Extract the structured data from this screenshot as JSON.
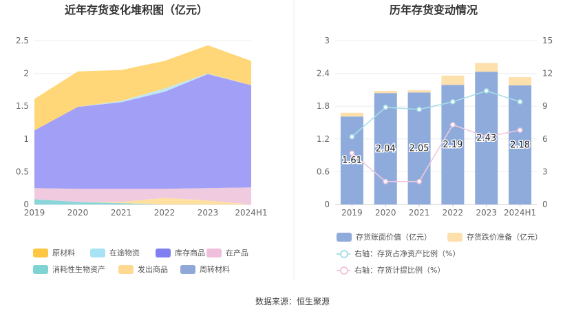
{
  "source_text": "数据来源：恒生聚源",
  "chart_data": [
    {
      "type": "area",
      "stacked": true,
      "title": "近年存货变化堆积图（亿元）",
      "categories": [
        "2019",
        "2020",
        "2021",
        "2022",
        "2023",
        "2024H1"
      ],
      "ylim": [
        0,
        2.5
      ],
      "yticks": [
        "0",
        "0.5",
        "1",
        "1.5",
        "2",
        "2.5"
      ],
      "grid": true,
      "legend_position": "bottom",
      "series": [
        {
          "name": "周转材料",
          "color": "#8fa8d8",
          "values": [
            0,
            0,
            0,
            0,
            0,
            0
          ]
        },
        {
          "name": "消耗性生物资产",
          "color": "#88d6d9",
          "values": [
            0.08,
            0.04,
            0.02,
            0,
            0,
            0
          ]
        },
        {
          "name": "发出商品",
          "color": "#ffe0a0",
          "values": [
            0,
            0,
            0.02,
            0.1,
            0.06,
            0
          ]
        },
        {
          "name": "在产品",
          "color": "#f0cbe0",
          "values": [
            0.17,
            0.2,
            0.2,
            0.14,
            0.19,
            0.26
          ]
        },
        {
          "name": "库存商品",
          "color": "#a1a0f6",
          "values": [
            0.88,
            1.25,
            1.32,
            1.48,
            1.74,
            1.56
          ]
        },
        {
          "name": "在途物资",
          "color": "#bfe6f2",
          "values": [
            0,
            0,
            0.02,
            0.05,
            0.01,
            0
          ]
        },
        {
          "name": "原材料",
          "color": "#ffd778",
          "values": [
            0.48,
            0.54,
            0.47,
            0.42,
            0.43,
            0.37
          ]
        }
      ],
      "legend": [
        {
          "name": "原材料",
          "color": "#fdc743"
        },
        {
          "name": "在途物资",
          "color": "#a8e2f5"
        },
        {
          "name": "库存商品",
          "color": "#7f7ff2"
        },
        {
          "name": "在产品",
          "color": "#f0bfdc"
        },
        {
          "name": "消耗性生物资产",
          "color": "#7fd3d3"
        },
        {
          "name": "发出商品",
          "color": "#ffd992"
        },
        {
          "name": "周转材料",
          "color": "#8fa8d8"
        }
      ]
    },
    {
      "type": "bar",
      "stacked": true,
      "title": "历年存货变动情况",
      "categories": [
        "2019",
        "2020",
        "2021",
        "2022",
        "2023",
        "2024H1"
      ],
      "ylim": [
        0,
        3
      ],
      "yticks": [
        "0",
        "0.6",
        "1.2",
        "1.8",
        "2.4",
        "3"
      ],
      "y2lim": [
        0,
        15
      ],
      "y2ticks": [
        "0",
        "3",
        "6",
        "9",
        "12",
        "15"
      ],
      "grid": true,
      "legend_position": "bottom",
      "series": [
        {
          "name": "存货账面价值（亿元）",
          "color": "#8eabdb",
          "values": [
            1.61,
            2.04,
            2.05,
            2.19,
            2.43,
            2.18
          ],
          "labels": [
            "1.61",
            "2.04",
            "2.05",
            "2.19",
            "2.43",
            "2.18"
          ]
        },
        {
          "name": "存货跌价准备（亿元）",
          "color": "#fde0ac",
          "values": [
            0.07,
            0.04,
            0.04,
            0.17,
            0.16,
            0.15
          ]
        }
      ],
      "line_series": [
        {
          "name": "右轴：存货占净资产比例（%）",
          "color": "#a9dfe6",
          "axis": "right",
          "values": [
            6.2,
            8.9,
            8.7,
            9.4,
            10.4,
            9.4
          ]
        },
        {
          "name": "右轴：存货计提比例（%）",
          "color": "#f0c8de",
          "axis": "right",
          "values": [
            4.7,
            2.1,
            2.1,
            7.3,
            6.2,
            6.8
          ]
        }
      ]
    }
  ]
}
